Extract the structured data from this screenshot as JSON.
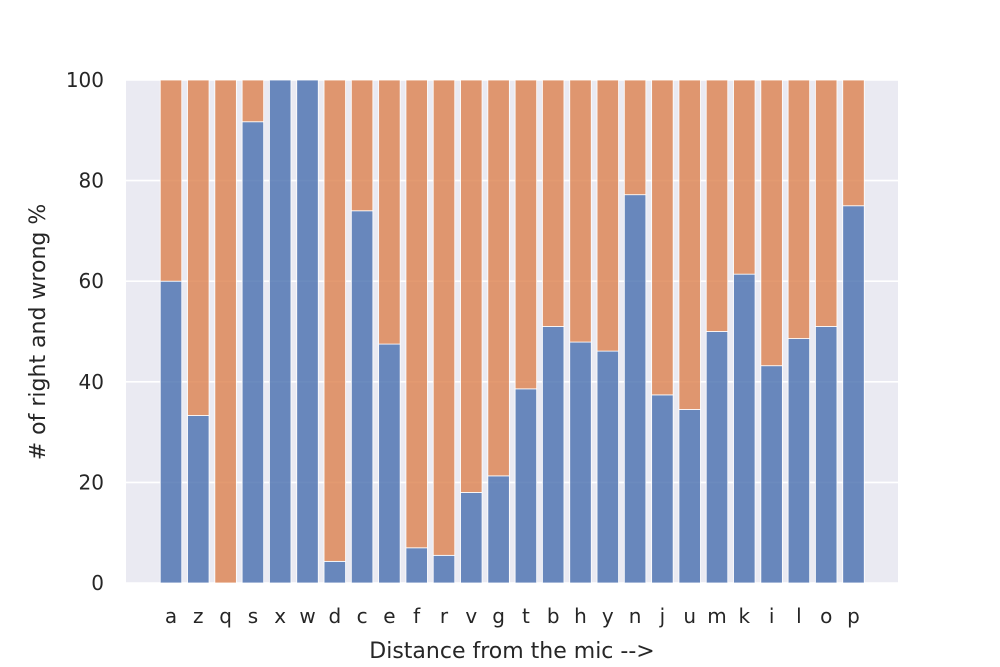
{
  "chart_data": {
    "type": "bar",
    "stacked": true,
    "title": "",
    "xlabel": "Distance from the mic -->",
    "ylabel": "# of right and wrong %",
    "ylim": [
      0,
      100
    ],
    "yticks": [
      0,
      20,
      40,
      60,
      80,
      100
    ],
    "grid": true,
    "legend": "none",
    "categories": [
      "a",
      "z",
      "q",
      "s",
      "x",
      "w",
      "d",
      "c",
      "e",
      "f",
      "r",
      "v",
      "g",
      "t",
      "b",
      "h",
      "y",
      "n",
      "j",
      "u",
      "m",
      "k",
      "i",
      "l",
      "o",
      "p"
    ],
    "series": [
      {
        "color": "#4c72b0",
        "values": [
          60,
          33.3,
          0,
          91.7,
          100,
          100,
          4.3,
          74,
          47.5,
          7,
          5.5,
          18,
          21.3,
          38.6,
          51,
          47.9,
          46.1,
          77.2,
          37.4,
          34.5,
          50,
          61.4,
          43.2,
          48.6,
          51,
          75
        ]
      },
      {
        "color": "#dd8452",
        "values": [
          40,
          66.7,
          100,
          8.3,
          0,
          0,
          95.7,
          26,
          52.5,
          93,
          94.5,
          82,
          78.7,
          61.4,
          49,
          52.1,
          53.9,
          22.8,
          62.6,
          65.5,
          50,
          38.6,
          56.8,
          51.4,
          49,
          25
        ]
      }
    ]
  },
  "style": {
    "plot_background": "#eaeaf2",
    "grid_color": "#ffffff"
  }
}
